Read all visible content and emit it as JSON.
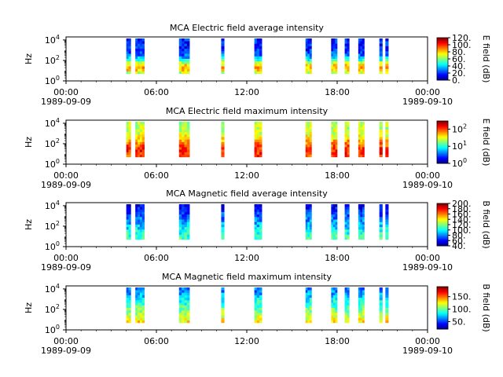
{
  "chart_data": [
    {
      "type": "heatmap",
      "title": "MCA  Electric field average intensity",
      "ylabel": "Hz",
      "ylim_log10": [
        0,
        4.3
      ],
      "yticks": [
        {
          "base": "10",
          "exp": "0",
          "log": 0
        },
        {
          "base": "10",
          "exp": "2",
          "log": 2
        },
        {
          "base": "10",
          "exp": "4",
          "log": 4
        }
      ],
      "xticks": [
        {
          "t": "00:00",
          "d": "1989-09-09",
          "h": 0
        },
        {
          "t": "06:00",
          "d": "",
          "h": 6
        },
        {
          "t": "12:00",
          "d": "",
          "h": 12
        },
        {
          "t": "18:00",
          "d": "",
          "h": 18
        },
        {
          "t": "00:00",
          "d": "1989-09-10",
          "h": 24
        }
      ],
      "colorbar": {
        "label": "E field (dB)",
        "scale": "linear",
        "min": 0,
        "max": 120,
        "ticks": [
          {
            "v": 0,
            "label": "0."
          },
          {
            "v": 20,
            "label": "20."
          },
          {
            "v": 40,
            "label": "40."
          },
          {
            "v": 60,
            "label": "60."
          },
          {
            "v": 80,
            "label": "80."
          },
          {
            "v": 100,
            "label": "100."
          },
          {
            "v": 120,
            "label": "120."
          }
        ]
      },
      "passes_hours": [
        [
          4.0,
          4.3
        ],
        [
          4.6,
          5.2
        ],
        [
          7.5,
          8.2
        ],
        [
          10.3,
          10.5
        ],
        [
          12.5,
          13.0
        ],
        [
          15.9,
          16.3
        ],
        [
          17.6,
          18.0
        ],
        [
          18.5,
          18.8
        ],
        [
          19.4,
          19.8
        ],
        [
          20.8,
          21.0
        ],
        [
          21.2,
          21.4
        ]
      ]
    },
    {
      "type": "heatmap",
      "title": "MCA  Electric field maximum intensity",
      "ylabel": "Hz",
      "ylim_log10": [
        0,
        4.3
      ],
      "yticks": [
        {
          "base": "10",
          "exp": "0",
          "log": 0
        },
        {
          "base": "10",
          "exp": "2",
          "log": 2
        },
        {
          "base": "10",
          "exp": "4",
          "log": 4
        }
      ],
      "xticks": [
        {
          "t": "00:00",
          "d": "1989-09-09",
          "h": 0
        },
        {
          "t": "06:00",
          "d": "",
          "h": 6
        },
        {
          "t": "12:00",
          "d": "",
          "h": 12
        },
        {
          "t": "18:00",
          "d": "",
          "h": 18
        },
        {
          "t": "00:00",
          "d": "1989-09-10",
          "h": 24
        }
      ],
      "colorbar": {
        "label": "E field (dB)",
        "scale": "log",
        "min": 1,
        "max": 300,
        "ticks": [
          {
            "v": 1,
            "label": "10",
            "exp": "0"
          },
          {
            "v": 10,
            "label": "10",
            "exp": "1"
          },
          {
            "v": 100,
            "label": "10",
            "exp": "2"
          }
        ]
      },
      "passes_hours": [
        [
          4.0,
          4.3
        ],
        [
          4.6,
          5.2
        ],
        [
          7.5,
          8.2
        ],
        [
          10.3,
          10.5
        ],
        [
          12.5,
          13.0
        ],
        [
          15.9,
          16.3
        ],
        [
          17.6,
          18.0
        ],
        [
          18.5,
          18.8
        ],
        [
          19.4,
          19.8
        ],
        [
          20.8,
          21.0
        ],
        [
          21.2,
          21.4
        ]
      ]
    },
    {
      "type": "heatmap",
      "title": "MCA  Magnetic field average intensity",
      "ylabel": "Hz",
      "ylim_log10": [
        0,
        4.3
      ],
      "yticks": [
        {
          "base": "10",
          "exp": "0",
          "log": 0
        },
        {
          "base": "10",
          "exp": "2",
          "log": 2
        },
        {
          "base": "10",
          "exp": "4",
          "log": 4
        }
      ],
      "xticks": [
        {
          "t": "00:00",
          "d": "1989-09-09",
          "h": 0
        },
        {
          "t": "06:00",
          "d": "",
          "h": 6
        },
        {
          "t": "12:00",
          "d": "",
          "h": 12
        },
        {
          "t": "18:00",
          "d": "",
          "h": 18
        },
        {
          "t": "00:00",
          "d": "1989-09-10",
          "h": 24
        }
      ],
      "colorbar": {
        "label": "B field (dB)",
        "scale": "linear",
        "min": 40,
        "max": 200,
        "ticks": [
          {
            "v": 40,
            "label": "40."
          },
          {
            "v": 60,
            "label": "60."
          },
          {
            "v": 80,
            "label": "80."
          },
          {
            "v": 100,
            "label": "100."
          },
          {
            "v": 120,
            "label": "120."
          },
          {
            "v": 140,
            "label": "140."
          },
          {
            "v": 160,
            "label": "160."
          },
          {
            "v": 180,
            "label": "180."
          },
          {
            "v": 200,
            "label": "200."
          }
        ]
      },
      "passes_hours": [
        [
          4.0,
          4.3
        ],
        [
          4.6,
          5.2
        ],
        [
          7.5,
          8.2
        ],
        [
          10.3,
          10.5
        ],
        [
          12.5,
          13.0
        ],
        [
          15.9,
          16.3
        ],
        [
          17.6,
          18.0
        ],
        [
          18.5,
          18.8
        ],
        [
          19.4,
          19.8
        ],
        [
          20.8,
          21.0
        ],
        [
          21.2,
          21.4
        ]
      ]
    },
    {
      "type": "heatmap",
      "title": "MCA  Magnetic field maximum intensity",
      "ylabel": "Hz",
      "ylim_log10": [
        0,
        4.3
      ],
      "yticks": [
        {
          "base": "10",
          "exp": "0",
          "log": 0
        },
        {
          "base": "10",
          "exp": "2",
          "log": 2
        },
        {
          "base": "10",
          "exp": "4",
          "log": 4
        }
      ],
      "xticks": [
        {
          "t": "00:00",
          "d": "1989-09-09",
          "h": 0
        },
        {
          "t": "06:00",
          "d": "",
          "h": 6
        },
        {
          "t": "12:00",
          "d": "",
          "h": 12
        },
        {
          "t": "18:00",
          "d": "",
          "h": 18
        },
        {
          "t": "00:00",
          "d": "1989-09-10",
          "h": 24
        }
      ],
      "colorbar": {
        "label": "B field (dB)",
        "scale": "linear",
        "min": 20,
        "max": 190,
        "ticks": [
          {
            "v": 50,
            "label": "50."
          },
          {
            "v": 100,
            "label": "100."
          },
          {
            "v": 150,
            "label": "150."
          }
        ]
      },
      "passes_hours": [
        [
          4.0,
          4.3
        ],
        [
          4.6,
          5.2
        ],
        [
          7.5,
          8.2
        ],
        [
          10.3,
          10.5
        ],
        [
          12.5,
          13.0
        ],
        [
          15.9,
          16.3
        ],
        [
          17.6,
          18.0
        ],
        [
          18.5,
          18.8
        ],
        [
          19.4,
          19.8
        ],
        [
          20.8,
          21.0
        ],
        [
          21.2,
          21.4
        ]
      ]
    }
  ]
}
